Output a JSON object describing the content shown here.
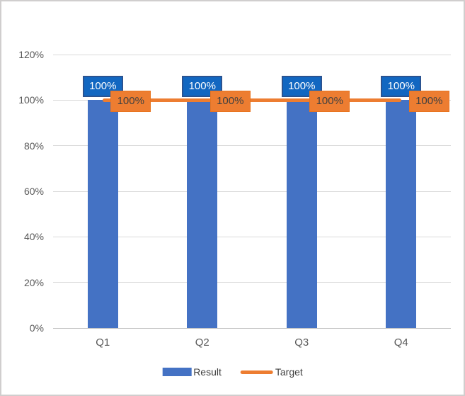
{
  "window": {
    "background": "#FFFFFF",
    "border_color": "#D0CECE"
  },
  "chart_data": {
    "type": "bar",
    "title": "",
    "categories": [
      "Q1",
      "Q2",
      "Q3",
      "Q4"
    ],
    "series": [
      {
        "name": "Result",
        "type": "bar",
        "color": "#4472C4",
        "values": [
          1.0,
          1.0,
          1.0,
          1.0
        ],
        "data_labels": [
          "100%",
          "100%",
          "100%",
          "100%"
        ],
        "label_style": {
          "fill": "#1267C1",
          "border": "#2A5391",
          "text": "#FFFFFF"
        }
      },
      {
        "name": "Target",
        "type": "line",
        "color": "#ED7D31",
        "values": [
          1.0,
          1.0,
          1.0,
          1.0
        ],
        "data_labels": [
          "100%",
          "100%",
          "100%",
          "100%"
        ],
        "label_style": {
          "fill": "#ED7D31",
          "border": "#E8741F",
          "text": "#404040"
        }
      }
    ],
    "y_axis": {
      "min": 0,
      "max": 1.2,
      "step": 0.2,
      "tick_labels": [
        "0%",
        "20%",
        "40%",
        "60%",
        "80%",
        "100%",
        "120%"
      ],
      "label_color": "#595959",
      "gridline_color": "#D9D9D9",
      "axis_line_color": "#BFBFBF"
    },
    "x_axis": {
      "label_color": "#595959"
    },
    "legend": {
      "position": "bottom",
      "text_color": "#404040",
      "items": [
        {
          "label": "Result",
          "swatch": "rect",
          "color": "#4472C4"
        },
        {
          "label": "Target",
          "swatch": "line",
          "color": "#ED7D31"
        }
      ]
    },
    "gridlines": true
  }
}
